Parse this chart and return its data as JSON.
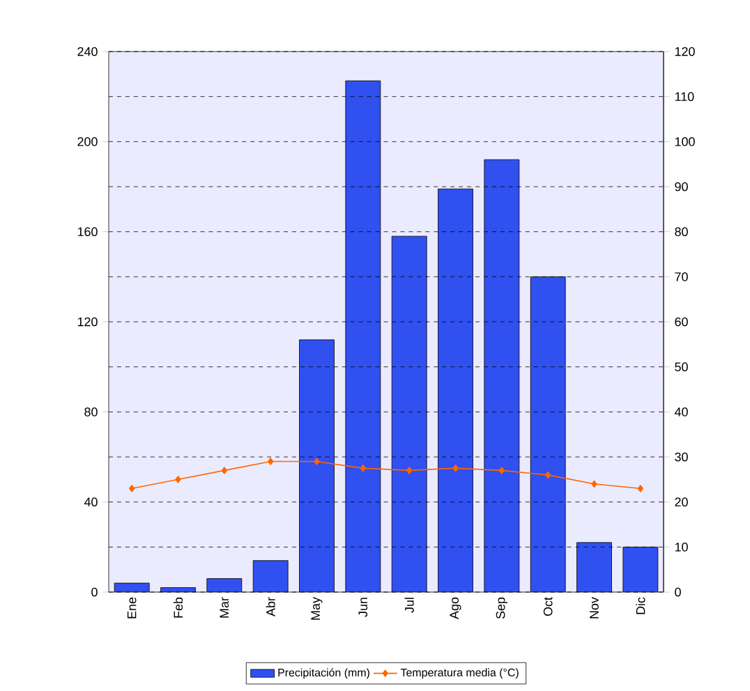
{
  "chart_data": {
    "type": "bar",
    "categories": [
      "Ene",
      "Feb",
      "Mar",
      "Abr",
      "May",
      "Jun",
      "Jul",
      "Ago",
      "Sep",
      "Oct",
      "Nov",
      "Dic"
    ],
    "series": [
      {
        "name": "Precipitación (mm)",
        "color": "#3050f0",
        "values": [
          4,
          2,
          6,
          14,
          112,
          227,
          158,
          179,
          192,
          140,
          22,
          20
        ]
      },
      {
        "name": "Temperatura media (°C)",
        "type": "line",
        "axis": "y2",
        "marker": "diamond",
        "color": "#ff6600",
        "values": [
          23,
          25,
          27,
          29,
          29,
          27.5,
          27,
          27.5,
          27,
          26,
          24,
          23
        ]
      }
    ],
    "ylim": [
      0,
      240
    ],
    "yticks": [
      0,
      40,
      80,
      120,
      160,
      200,
      240
    ],
    "y2lim": [
      0,
      120
    ],
    "y2ticks": [
      0,
      10,
      20,
      30,
      40,
      50,
      60,
      70,
      80,
      90,
      100,
      110,
      120
    ],
    "grid": "y",
    "legend": "bottom"
  }
}
